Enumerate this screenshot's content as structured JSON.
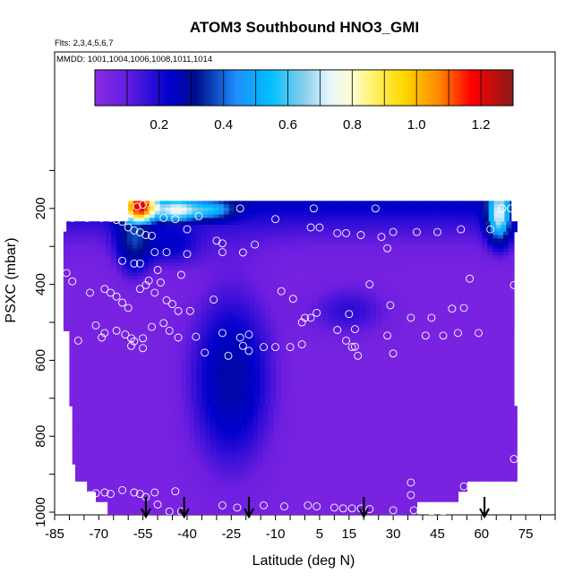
{
  "chart_data": {
    "type": "heatmap",
    "title": "ATOM3 Southbound HNO3_GMI",
    "flights_note": "Flts: 2,3,4,5,6,7",
    "dates_note": "MMDD: 1001,1004,1006,1008,1011,1014",
    "xlabel": "Latitude (deg N)",
    "ylabel": "PSXC (mbar)",
    "xlim": [
      -85,
      85
    ],
    "ylim": [
      1000,
      0
    ],
    "x_ticks": [
      -85,
      -70,
      -55,
      -40,
      -25,
      -10,
      5,
      15,
      30,
      45,
      60,
      75
    ],
    "y_ticks": [
      200,
      400,
      600,
      800,
      1000
    ],
    "colorbar": {
      "range": [
        0,
        1.3
      ],
      "ticks": [
        0.2,
        0.4,
        0.6,
        0.8,
        1.0,
        1.2
      ],
      "tick_labels": [
        "0.2",
        "0.4",
        "0.6",
        "0.8",
        "1.0",
        "1.2"
      ]
    },
    "field_extent": {
      "lat": [
        -82,
        72
      ],
      "pressure_top": 180,
      "pressure_bottom": 1000
    },
    "grid": false,
    "arrows_lat": [
      -54,
      -41,
      -19,
      20,
      61
    ],
    "observations": [
      [
        -57,
        195
      ],
      [
        -55,
        190
      ],
      [
        -52,
        200
      ],
      [
        -48,
        225
      ],
      [
        -44,
        228
      ],
      [
        -36,
        220
      ],
      [
        -22,
        200
      ],
      [
        3,
        200
      ],
      [
        24,
        200
      ],
      [
        67,
        200
      ],
      [
        70,
        200
      ],
      [
        -79,
        225
      ],
      [
        -74,
        225
      ],
      [
        -69,
        225
      ],
      [
        -66,
        225
      ],
      [
        -64,
        230
      ],
      [
        -62,
        235
      ],
      [
        -60,
        250
      ],
      [
        -58,
        258
      ],
      [
        -56,
        263
      ],
      [
        -54,
        270
      ],
      [
        -52,
        272
      ],
      [
        -40,
        255
      ],
      [
        -30,
        285
      ],
      [
        -28,
        292
      ],
      [
        -17,
        295
      ],
      [
        -10,
        228
      ],
      [
        2,
        250
      ],
      [
        5,
        250
      ],
      [
        11,
        265
      ],
      [
        14,
        265
      ],
      [
        19,
        270
      ],
      [
        26,
        275
      ],
      [
        30,
        262
      ],
      [
        38,
        262
      ],
      [
        45,
        262
      ],
      [
        53,
        255
      ],
      [
        63,
        255
      ],
      [
        -51,
        315
      ],
      [
        -47,
        315
      ],
      [
        -40,
        320
      ],
      [
        -28,
        315
      ],
      [
        -21,
        316
      ],
      [
        28,
        305
      ],
      [
        -56,
        345
      ],
      [
        -50,
        362
      ],
      [
        -42,
        375
      ],
      [
        -81,
        370
      ],
      [
        -62,
        338
      ],
      [
        -58,
        345
      ],
      [
        -53,
        390
      ],
      [
        -49,
        395
      ],
      [
        56,
        385
      ],
      [
        22,
        400
      ],
      [
        71,
        402
      ],
      [
        -79,
        392
      ],
      [
        -73,
        422
      ],
      [
        -68,
        412
      ],
      [
        -66,
        422
      ],
      [
        -64,
        432
      ],
      [
        -62,
        448
      ],
      [
        -60,
        462
      ],
      [
        -56,
        412
      ],
      [
        -54,
        402
      ],
      [
        -51,
        422
      ],
      [
        -47,
        442
      ],
      [
        -45,
        452
      ],
      [
        -43,
        470
      ],
      [
        -39,
        470
      ],
      [
        -31,
        440
      ],
      [
        -8,
        418
      ],
      [
        -4,
        438
      ],
      [
        0,
        488
      ],
      [
        2,
        488
      ],
      [
        4,
        475
      ],
      [
        -1,
        500
      ],
      [
        15,
        478
      ],
      [
        17,
        518
      ],
      [
        29,
        455
      ],
      [
        36,
        488
      ],
      [
        43,
        488
      ],
      [
        50,
        464
      ],
      [
        54,
        462
      ],
      [
        -71,
        508
      ],
      [
        -68,
        528
      ],
      [
        -64,
        522
      ],
      [
        -61,
        532
      ],
      [
        -59,
        542
      ],
      [
        -58,
        550
      ],
      [
        -55,
        542
      ],
      [
        -52,
        512
      ],
      [
        -48,
        502
      ],
      [
        -46,
        522
      ],
      [
        -43,
        540
      ],
      [
        -37,
        538
      ],
      [
        -28,
        528
      ],
      [
        -22,
        540
      ],
      [
        -21,
        562
      ],
      [
        -19,
        532
      ],
      [
        -14,
        565
      ],
      [
        -10,
        565
      ],
      [
        -5,
        565
      ],
      [
        -1,
        558
      ],
      [
        11,
        520
      ],
      [
        14,
        548
      ],
      [
        17,
        564
      ],
      [
        28,
        535
      ],
      [
        30,
        582
      ],
      [
        41,
        535
      ],
      [
        47,
        535
      ],
      [
        52,
        528
      ],
      [
        59,
        528
      ],
      [
        -77,
        548
      ],
      [
        -69,
        540
      ],
      [
        -59,
        562
      ],
      [
        -55,
        568
      ],
      [
        -34,
        580
      ],
      [
        -26,
        588
      ],
      [
        -19,
        575
      ],
      [
        16,
        565
      ],
      [
        18,
        588
      ],
      [
        -81,
        868
      ],
      [
        -62,
        942
      ],
      [
        -58,
        948
      ],
      [
        -56,
        952
      ],
      [
        -54,
        960
      ],
      [
        -51,
        948
      ],
      [
        -44,
        945
      ],
      [
        -68,
        948
      ],
      [
        -66,
        952
      ],
      [
        -71,
        950
      ],
      [
        -73,
        955
      ],
      [
        -50,
        980
      ],
      [
        -46,
        998
      ],
      [
        -42,
        998
      ],
      [
        -28,
        982
      ],
      [
        -23,
        988
      ],
      [
        -14,
        982
      ],
      [
        -7,
        985
      ],
      [
        1,
        982
      ],
      [
        4,
        985
      ],
      [
        10,
        988
      ],
      [
        13,
        990
      ],
      [
        16,
        990
      ],
      [
        19,
        990
      ],
      [
        22,
        992
      ],
      [
        30,
        995
      ],
      [
        37,
        995
      ],
      [
        43,
        998
      ],
      [
        47,
        998
      ],
      [
        36,
        922
      ],
      [
        36,
        955
      ],
      [
        71,
        860
      ],
      [
        54,
        932
      ]
    ]
  }
}
